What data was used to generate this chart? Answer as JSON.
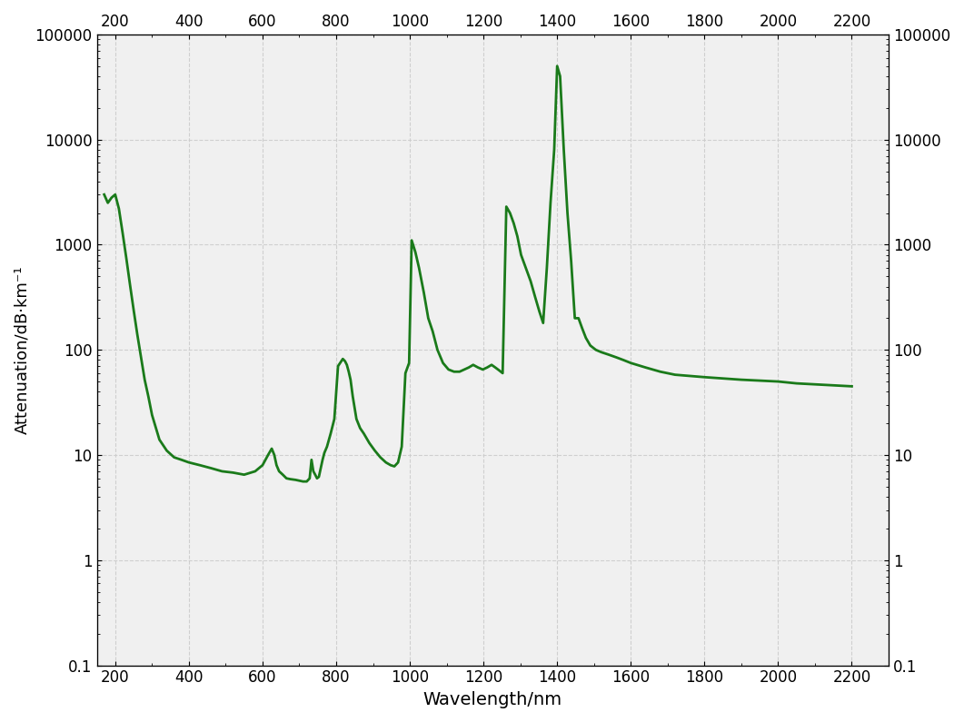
{
  "xlabel": "Wavelength/nm",
  "ylabel": "Attenuation/dB·km⁻¹",
  "line_color": "#1a7a1a",
  "line_width": 2.0,
  "xlim": [
    150,
    2300
  ],
  "ylim": [
    0.1,
    100000
  ],
  "xticks": [
    200,
    400,
    600,
    800,
    1000,
    1200,
    1400,
    1600,
    1800,
    2000,
    2200
  ],
  "yticks": [
    0.1,
    1,
    10,
    100,
    1000,
    10000,
    100000
  ],
  "ytick_labels": [
    "0.1",
    "1",
    "10",
    "100",
    "1000",
    "10000",
    "100000"
  ],
  "background_color": "#f0f0f0",
  "grid_color": "#cccccc",
  "curve_x": [
    170,
    180,
    190,
    200,
    210,
    220,
    230,
    240,
    250,
    260,
    270,
    280,
    290,
    300,
    320,
    340,
    360,
    380,
    400,
    430,
    460,
    490,
    520,
    550,
    580,
    600,
    615,
    625,
    632,
    638,
    645,
    655,
    665,
    675,
    690,
    700,
    710,
    720,
    728,
    733,
    738,
    743,
    748,
    753,
    758,
    763,
    768,
    775,
    785,
    795,
    805,
    818,
    824,
    829,
    834,
    839,
    845,
    855,
    865,
    875,
    890,
    905,
    920,
    935,
    948,
    958,
    968,
    978,
    988,
    998,
    1005,
    1015,
    1025,
    1038,
    1050,
    1062,
    1075,
    1090,
    1105,
    1120,
    1135,
    1148,
    1160,
    1172,
    1185,
    1198,
    1210,
    1222,
    1232,
    1242,
    1252,
    1262,
    1272,
    1282,
    1292,
    1302,
    1315,
    1328,
    1340,
    1352,
    1362,
    1372,
    1382,
    1392,
    1400,
    1408,
    1418,
    1428,
    1438,
    1448,
    1458,
    1468,
    1478,
    1490,
    1505,
    1520,
    1540,
    1560,
    1580,
    1600,
    1640,
    1680,
    1720,
    1800,
    1900,
    2000,
    2050,
    2100,
    2150,
    2200
  ],
  "curve_y": [
    3000,
    2500,
    2800,
    3000,
    2200,
    1300,
    750,
    420,
    240,
    140,
    85,
    52,
    36,
    24,
    14,
    11,
    9.5,
    9,
    8.5,
    8,
    7.5,
    7,
    6.8,
    6.5,
    7,
    8,
    10,
    11.5,
    10,
    8,
    7,
    6.5,
    6,
    5.9,
    5.8,
    5.7,
    5.6,
    5.6,
    6,
    9,
    7,
    6.5,
    6,
    6.2,
    7.5,
    9,
    10.5,
    12,
    16,
    22,
    70,
    82,
    78,
    72,
    62,
    52,
    36,
    22,
    18,
    16,
    13,
    11,
    9.5,
    8.5,
    8,
    7.8,
    8.5,
    12,
    60,
    75,
    1100,
    850,
    600,
    350,
    200,
    150,
    100,
    75,
    65,
    62,
    62,
    65,
    68,
    72,
    68,
    65,
    68,
    72,
    68,
    64,
    60,
    2300,
    2000,
    1600,
    1200,
    800,
    600,
    450,
    320,
    230,
    180,
    600,
    2500,
    8000,
    50000,
    40000,
    8000,
    2000,
    700,
    200,
    200,
    160,
    130,
    110,
    100,
    95,
    90,
    85,
    80,
    75,
    68,
    62,
    58,
    55,
    52,
    50,
    48,
    47,
    46,
    45
  ]
}
